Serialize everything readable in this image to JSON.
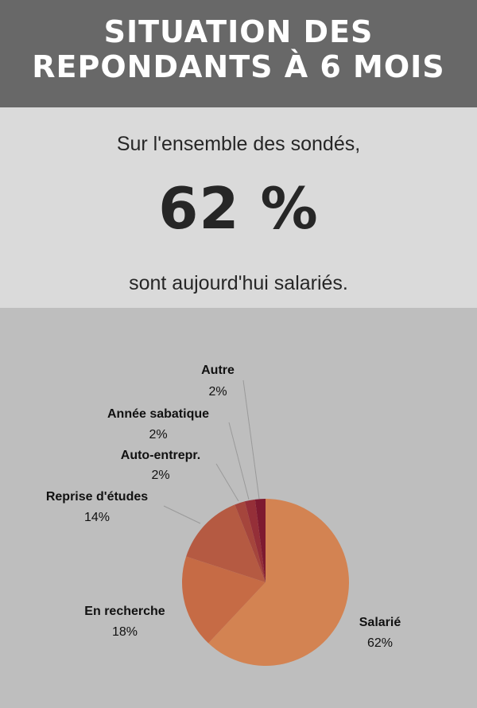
{
  "header": {
    "title_line1": "SITUATION DES",
    "title_line2": "REPONDANTS À 6 MOIS"
  },
  "summary": {
    "intro": "Sur l'ensemble des sondés,",
    "highlight": "62 %",
    "outro": "sont aujourd'hui salariés."
  },
  "chart_data": {
    "type": "pie",
    "slices": [
      {
        "label": "Salarié",
        "value": 62,
        "value_label": "62%",
        "color": "#d38352"
      },
      {
        "label": "En recherche",
        "value": 18,
        "value_label": "18%",
        "color": "#c66b45"
      },
      {
        "label": "Reprise d'études",
        "value": 14,
        "value_label": "14%",
        "color": "#b55a42"
      },
      {
        "label": "Auto-entrepr.",
        "value": 2,
        "value_label": "2%",
        "color": "#a5453c"
      },
      {
        "label": "Année sabatique",
        "value": 2,
        "value_label": "2%",
        "color": "#952f38"
      },
      {
        "label": "Autre",
        "value": 2,
        "value_label": "2%",
        "color": "#7e1a30"
      }
    ],
    "start": "top",
    "direction": "clockwise"
  },
  "colors": {
    "header_bg": "#686868",
    "band_bg": "#dadada",
    "chart_bg": "#bebebe"
  }
}
